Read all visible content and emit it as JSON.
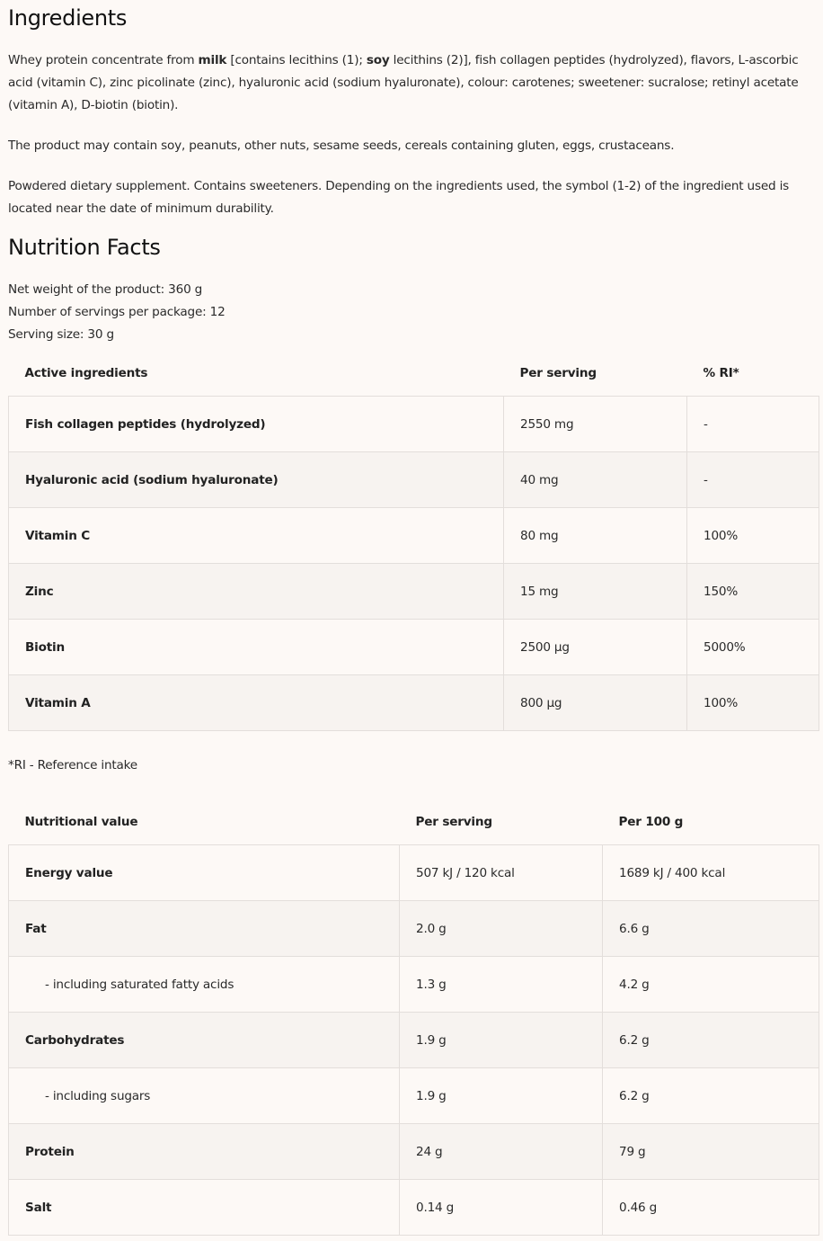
{
  "ingredients": {
    "title": "Ingredients",
    "p1": [
      {
        "t": "Whey protein concentrate from ",
        "b": false
      },
      {
        "t": "milk",
        "b": true
      },
      {
        "t": " [contains lecithins (1); ",
        "b": false
      },
      {
        "t": "soy",
        "b": true
      },
      {
        "t": " lecithins (2)], fish collagen peptides (hydrolyzed), flavors, L-ascorbic acid (vitamin C), zinc picolinate (zinc), hyaluronic acid (sodium hyaluronate), colour: carotenes; sweetener: sucralose; retinyl acetate (vitamin A), D-biotin (biotin).",
        "b": false
      }
    ],
    "p2": "The product may contain soy, peanuts, other nuts, sesame seeds, cereals containing gluten, eggs, crustaceans.",
    "p3": "Powdered dietary supplement. Contains sweeteners. Depending on the ingredients used, the symbol (1-2) of the ingredient used is located near the date of minimum durability."
  },
  "nutrition": {
    "title": "Nutrition Facts",
    "info": [
      "Net weight of the product: 360 g",
      "Number of servings per package: 12",
      "Serving size: 30 g"
    ],
    "active": {
      "headers": [
        "Active ingredients",
        "Per serving",
        "% RI*"
      ],
      "rows": [
        [
          "Fish collagen peptides (hydrolyzed)",
          "2550 mg",
          "-"
        ],
        [
          "Hyaluronic acid (sodium hyaluronate)",
          "40 mg",
          "-"
        ],
        [
          "Vitamin C",
          "80 mg",
          "100%"
        ],
        [
          "Zinc",
          "15 mg",
          "150%"
        ],
        [
          "Biotin",
          "2500 µg",
          "5000%"
        ],
        [
          "Vitamin A",
          "800 µg",
          "100%"
        ]
      ]
    },
    "footnote": "*RI - Reference intake",
    "values": {
      "headers": [
        "Nutritional value",
        "Per serving",
        "Per 100 g"
      ],
      "rows": [
        [
          "Energy value",
          "507 kJ / 120 kcal",
          "1689 kJ / 400 kcal",
          false
        ],
        [
          "Fat",
          "2.0 g",
          "6.6 g",
          false
        ],
        [
          "- including saturated fatty acids",
          "1.3 g",
          "4.2 g",
          true
        ],
        [
          "Carbohydrates",
          "1.9 g",
          "6.2 g",
          false
        ],
        [
          "- including sugars",
          "1.9 g",
          "6.2 g",
          true
        ],
        [
          "Protein",
          "24 g",
          "79 g",
          false
        ],
        [
          "Salt",
          "0.14 g",
          "0.46 g",
          false
        ]
      ]
    }
  }
}
